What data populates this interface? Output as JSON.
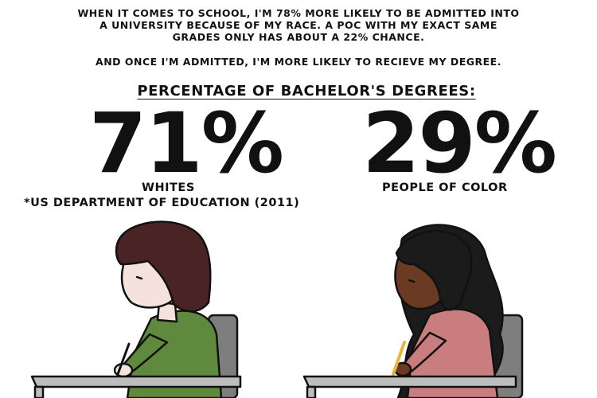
{
  "intro": {
    "line1": "WHEN IT COMES TO SCHOOL, I'M 78% MORE LIKELY TO BE ADMITTED INTO",
    "line2": "A UNIVERSITY BECAUSE OF MY RACE. A POC WITH MY EXACT SAME",
    "line3": "GRADES ONLY HAS ABOUT A 22% CHANCE.",
    "line4": "AND ONCE I'M ADMITTED, I'M MORE LIKELY TO RECIEVE MY DEGREE."
  },
  "heading": "PERCENTAGE OF BACHELOR'S DEGREES:",
  "stats": [
    {
      "value": "71%",
      "label": "WHITES"
    },
    {
      "value": "29%",
      "label": "PEOPLE OF COLOR"
    }
  ],
  "source": "*US DEPARTMENT OF EDUCATION (2011)",
  "colors": {
    "skin_left": "#f6e2dc",
    "hair_left": "#4a2424",
    "shirt_left": "#5f8a3e",
    "skin_right": "#6b3a22",
    "hair_right": "#1b1b1b",
    "shirt_right": "#c97d7f",
    "desk": "#bdbdbd",
    "chair": "#7e7e7e",
    "pencil": "#e8b73a"
  }
}
